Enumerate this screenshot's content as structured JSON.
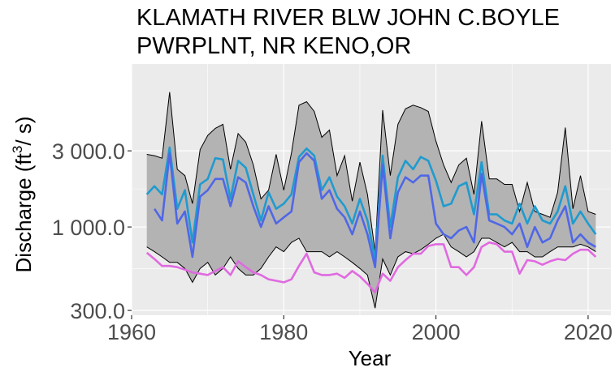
{
  "chart_data": {
    "type": "line",
    "title_lines": [
      "KLAMATH RIVER BLW JOHN C.BOYLE",
      "PWRPLNT, NR KENO,OR"
    ],
    "xlabel": "Year",
    "ylabel": "Discharge (ft³/s)",
    "ylabel_parts": {
      "main": "Discharge (ft",
      "sup": "3",
      "tail": "/ s)"
    },
    "x_scale": "linear",
    "y_scale": "log",
    "xlim": [
      1960,
      2023
    ],
    "ylim": [
      280,
      10500
    ],
    "x_ticks": [
      1960,
      1980,
      2000,
      2020
    ],
    "x_tick_labels": [
      "1960",
      "1980",
      "2000",
      "2020"
    ],
    "y_ticks": [
      300,
      1000,
      3000
    ],
    "y_tick_labels": [
      "300.0",
      "1 000.0",
      "3 000.0"
    ],
    "grid": true,
    "legend": "none",
    "colors": {
      "panel": "#ebebeb",
      "grid": "#ffffff",
      "band_fill": "#b3b3b3",
      "band_line": "#000000",
      "upper_line": "#1f9bcf",
      "mid_line": "#4f67e6",
      "lower_line": "#e06ae0"
    },
    "x": [
      1962,
      1963,
      1964,
      1965,
      1966,
      1967,
      1968,
      1969,
      1970,
      1971,
      1972,
      1973,
      1974,
      1975,
      1976,
      1977,
      1978,
      1979,
      1980,
      1981,
      1982,
      1983,
      1984,
      1985,
      1986,
      1987,
      1988,
      1989,
      1990,
      1991,
      1992,
      1993,
      1994,
      1995,
      1996,
      1997,
      1998,
      1999,
      2000,
      2001,
      2002,
      2003,
      2004,
      2005,
      2006,
      2007,
      2008,
      2009,
      2010,
      2011,
      2012,
      2013,
      2014,
      2015,
      2016,
      2017,
      2018,
      2019,
      2020,
      2021
    ],
    "series": [
      {
        "role": "band_upper",
        "values": [
          2850,
          2800,
          2700,
          7000,
          2300,
          2100,
          1400,
          3050,
          3750,
          4150,
          4400,
          2300,
          3850,
          3400,
          2450,
          1500,
          1700,
          2850,
          1700,
          2900,
          5800,
          6100,
          5300,
          3650,
          4050,
          2100,
          2800,
          1450,
          2550,
          1600,
          700,
          5400,
          2100,
          4400,
          5500,
          5800,
          5600,
          5300,
          3450,
          2450,
          1900,
          2450,
          2700,
          1600,
          4600,
          2000,
          2000,
          1850,
          1850,
          1250,
          1900,
          1250,
          1200,
          1150,
          1650,
          4200,
          1300,
          2100,
          1250,
          1200
        ]
      },
      {
        "role": "band_lower",
        "values": [
          750,
          700,
          650,
          600,
          600,
          550,
          450,
          550,
          600,
          500,
          550,
          650,
          550,
          500,
          500,
          550,
          650,
          750,
          700,
          800,
          850,
          700,
          700,
          700,
          650,
          700,
          650,
          600,
          550,
          500,
          310,
          630,
          500,
          650,
          700,
          680,
          720,
          780,
          850,
          900,
          750,
          700,
          650,
          700,
          850,
          850,
          800,
          750,
          800,
          700,
          700,
          650,
          650,
          700,
          750,
          750,
          750,
          780,
          750,
          700
        ]
      },
      {
        "role": "upper_line",
        "values": [
          1600,
          1800,
          1600,
          3150,
          1300,
          1700,
          800,
          1850,
          2000,
          2700,
          2650,
          1500,
          2600,
          2350,
          1600,
          1100,
          1650,
          1300,
          1400,
          1600,
          2750,
          3100,
          2800,
          1700,
          2050,
          1550,
          1350,
          1050,
          1500,
          1100,
          630,
          2800,
          1000,
          2050,
          2600,
          2300,
          2750,
          2600,
          1950,
          1350,
          1400,
          1800,
          1900,
          1200,
          2550,
          1200,
          1200,
          1100,
          1050,
          1400,
          1050,
          1350,
          1100,
          1050,
          1250,
          1800,
          1050,
          1250,
          1050,
          900
        ]
      },
      {
        "role": "mid_line",
        "values": [
          null,
          1300,
          1100,
          2900,
          1050,
          1250,
          650,
          1550,
          1700,
          2000,
          2000,
          1350,
          2050,
          1900,
          1350,
          1000,
          1350,
          1050,
          1150,
          1250,
          2550,
          2900,
          2600,
          1500,
          1700,
          1300,
          1150,
          900,
          1250,
          900,
          560,
          2450,
          850,
          1650,
          2050,
          1900,
          2100,
          2100,
          1050,
          900,
          850,
          950,
          1000,
          800,
          2150,
          1100,
          1050,
          1000,
          900,
          1050,
          750,
          1000,
          800,
          850,
          1100,
          1350,
          800,
          900,
          800,
          750
        ]
      },
      {
        "role": "lower_line",
        "values": [
          690,
          630,
          570,
          570,
          560,
          540,
          520,
          510,
          500,
          530,
          560,
          500,
          610,
          560,
          520,
          500,
          470,
          460,
          450,
          470,
          570,
          680,
          520,
          500,
          500,
          510,
          480,
          530,
          490,
          440,
          390,
          510,
          460,
          560,
          620,
          680,
          680,
          760,
          780,
          780,
          560,
          560,
          500,
          560,
          750,
          800,
          780,
          700,
          700,
          510,
          620,
          610,
          580,
          610,
          630,
          620,
          680,
          720,
          720,
          650
        ]
      }
    ]
  }
}
